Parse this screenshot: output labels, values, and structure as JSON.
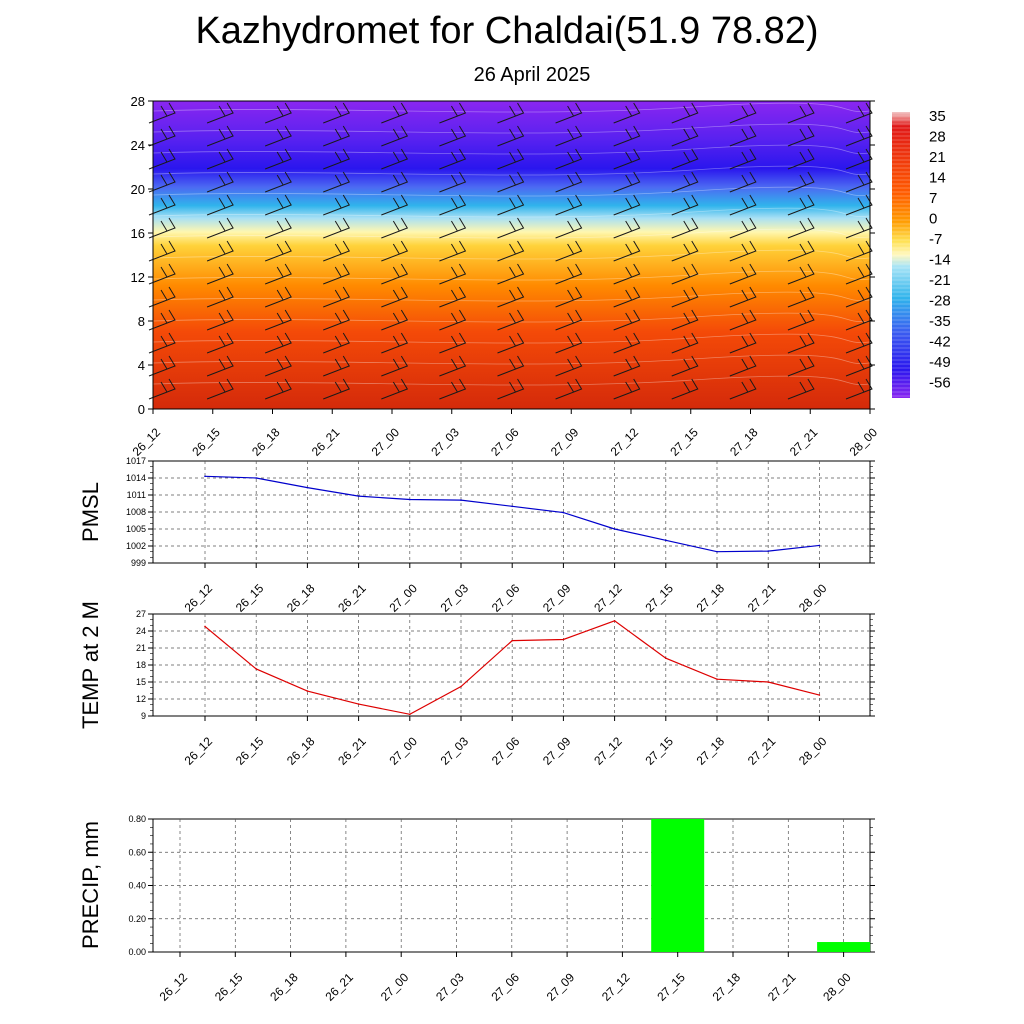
{
  "title": "Kazhydromet for Chaldai(51.9 78.82)",
  "subtitle": "26 April 2025",
  "chart_data": [
    {
      "type": "heatmap",
      "title": "",
      "xlabel": "",
      "ylabel": "",
      "x_ticks": [
        "26_12",
        "26_15",
        "26_18",
        "26_21",
        "27_00",
        "27_03",
        "27_06",
        "27_09",
        "27_12",
        "27_15",
        "27_18",
        "27_21",
        "28_00"
      ],
      "y_ticks": [
        0,
        4,
        8,
        12,
        16,
        20,
        24,
        28
      ],
      "ylim": [
        0,
        28
      ],
      "colorbar_labels": [
        "35",
        "28",
        "21",
        "14",
        "7",
        "0",
        "-7",
        "-14",
        "-21",
        "-28",
        "-35",
        "-42",
        "-49",
        "-56"
      ],
      "colors": {
        "hot": "#d42a0a",
        "warm": "#ff8a00",
        "neutral": "#fff7b0",
        "cool": "#30b4ec",
        "cold": "#2a16ee",
        "coldest": "#8a26f0"
      }
    },
    {
      "type": "line",
      "title": "",
      "ylabel": "PMSL",
      "x": [
        "26_12",
        "26_15",
        "26_18",
        "26_21",
        "27_00",
        "27_03",
        "27_06",
        "27_09",
        "27_12",
        "27_15",
        "27_18",
        "27_21",
        "28_00"
      ],
      "y_ticks": [
        999,
        1002,
        1005,
        1008,
        1011,
        1014,
        1017
      ],
      "ylim": [
        999,
        1017
      ],
      "series": [
        {
          "values": [
            1014.3,
            1014.0,
            1012.3,
            1010.8,
            1010.2,
            1010.1,
            1009.0,
            1007.9,
            1005.0,
            1003.0,
            1001.0,
            1001.1,
            1002.1
          ],
          "color": "#0000cc"
        }
      ]
    },
    {
      "type": "line",
      "title": "",
      "ylabel": "TEMP at 2 M",
      "x": [
        "26_12",
        "26_15",
        "26_18",
        "26_21",
        "27_00",
        "27_03",
        "27_06",
        "27_09",
        "27_12",
        "27_15",
        "27_18",
        "27_21",
        "28_00"
      ],
      "y_ticks": [
        9,
        12,
        15,
        18,
        21,
        24,
        27
      ],
      "ylim": [
        9,
        27
      ],
      "series": [
        {
          "values": [
            24.8,
            17.3,
            13.4,
            11.1,
            9.3,
            14.2,
            22.3,
            22.5,
            25.8,
            19.2,
            15.5,
            15.0,
            12.7
          ],
          "color": "#dd0000"
        }
      ]
    },
    {
      "type": "bar",
      "title": "",
      "ylabel": "PRECIP, mm",
      "categories": [
        "26_12",
        "26_15",
        "26_18",
        "26_21",
        "27_00",
        "27_03",
        "27_06",
        "27_09",
        "27_12",
        "27_15",
        "27_18",
        "27_21",
        "28_00"
      ],
      "y_ticks": [
        "0.00",
        "0.20",
        "0.40",
        "0.60",
        "0.80"
      ],
      "ylim": [
        0,
        0.8
      ],
      "values": [
        0,
        0,
        0,
        0,
        0,
        0,
        0,
        0,
        0,
        0.8,
        0,
        0,
        0.06
      ],
      "color": "#00ff00"
    }
  ]
}
